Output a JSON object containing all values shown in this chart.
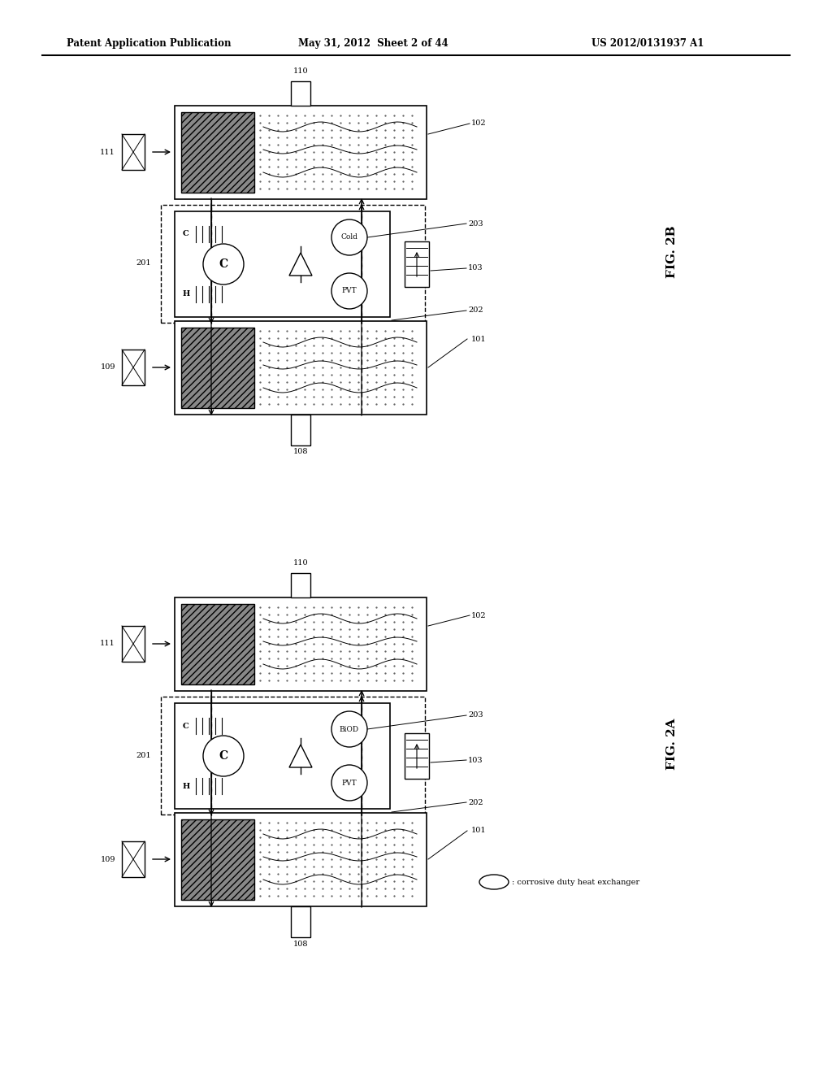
{
  "bg_color": "#ffffff",
  "header_left": "Patent Application Publication",
  "header_mid": "May 31, 2012  Sheet 2 of 44",
  "header_right": "US 2012/0131937 A1",
  "fig2b_label": "FIG. 2B",
  "fig2a_label": "FIG. 2A",
  "legend": ": corrosive duty heat exchanger",
  "dark_gray": "#888888"
}
